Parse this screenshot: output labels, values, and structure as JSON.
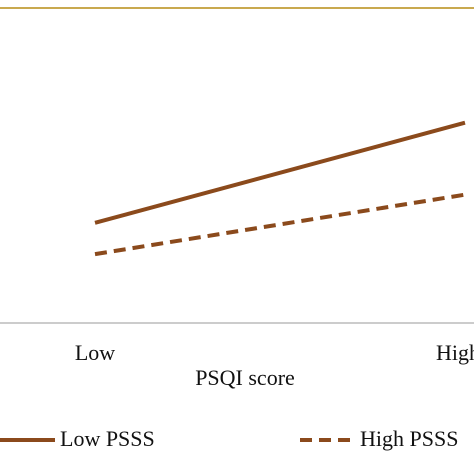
{
  "chart_data": {
    "type": "line",
    "x_label": "PSQI score",
    "categories": [
      "Low",
      "High"
    ],
    "series": [
      {
        "name": "Low PSSS",
        "color": "#8b4a1c",
        "dash": false,
        "values": [
          3.2,
          6.4
        ]
      },
      {
        "name": "High PSSS",
        "color": "#8b4a1c",
        "dash": true,
        "values": [
          2.2,
          4.1
        ]
      }
    ],
    "ylim": [
      0,
      10
    ]
  }
}
